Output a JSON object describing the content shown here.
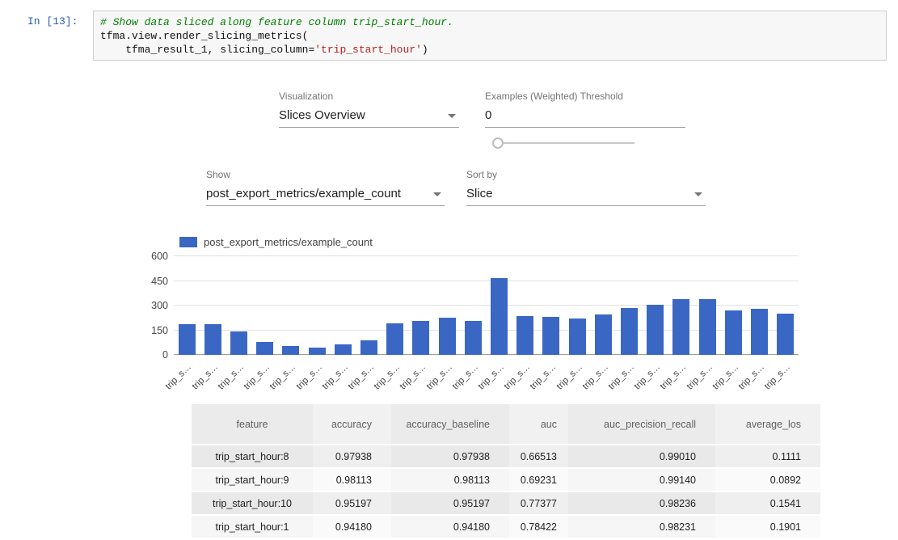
{
  "notebook": {
    "prompt": "In [13]:",
    "code": {
      "line1": "# Show data sliced along feature column trip_start_hour.",
      "line2": "tfma.view.render_slicing_metrics(",
      "line3_pre": "    tfma_result_1, slicing_column=",
      "line3_string": "'trip_start_hour'",
      "line3_close": ")"
    }
  },
  "controls": {
    "visualization": {
      "label": "Visualization",
      "value": "Slices Overview"
    },
    "threshold": {
      "label": "Examples (Weighted) Threshold",
      "value": "0"
    },
    "show": {
      "label": "Show",
      "value": "post_export_metrics/example_count"
    },
    "sort_by": {
      "label": "Sort by",
      "value": "Slice"
    }
  },
  "chart_data": {
    "type": "bar",
    "legend": "post_export_metrics/example_count",
    "bar_color": "#3b67c4",
    "grid": true,
    "legend_position": "top-left",
    "ylim": [
      0,
      600
    ],
    "yticks": [
      0,
      150,
      300,
      450,
      600
    ],
    "categories": [
      "trip_s…",
      "trip_s…",
      "trip_s…",
      "trip_s…",
      "trip_s…",
      "trip_s…",
      "trip_s…",
      "trip_s…",
      "trip_s…",
      "trip_s…",
      "trip_s…",
      "trip_s…",
      "trip_s…",
      "trip_s…",
      "trip_s…",
      "trip_s…",
      "trip_s…",
      "trip_s…",
      "trip_s…",
      "trip_s…",
      "trip_s…",
      "trip_s…",
      "trip_s…",
      "trip_s…"
    ],
    "values": [
      185,
      185,
      145,
      80,
      55,
      45,
      65,
      90,
      190,
      205,
      225,
      205,
      465,
      235,
      230,
      220,
      245,
      285,
      305,
      340,
      340,
      270,
      280,
      250
    ]
  },
  "table": {
    "headers": [
      "feature",
      "accuracy",
      "accuracy_baseline",
      "auc",
      "auc_precision_recall",
      "average_los"
    ],
    "rows": [
      [
        "trip_start_hour:8",
        "0.97938",
        "0.97938",
        "0.66513",
        "0.99010",
        "0.1111"
      ],
      [
        "trip_start_hour:9",
        "0.98113",
        "0.98113",
        "0.69231",
        "0.99140",
        "0.0892"
      ],
      [
        "trip_start_hour:10",
        "0.95197",
        "0.95197",
        "0.77377",
        "0.98236",
        "0.1541"
      ],
      [
        "trip_start_hour:1",
        "0.94180",
        "0.94180",
        "0.78422",
        "0.98231",
        "0.1901"
      ]
    ]
  }
}
